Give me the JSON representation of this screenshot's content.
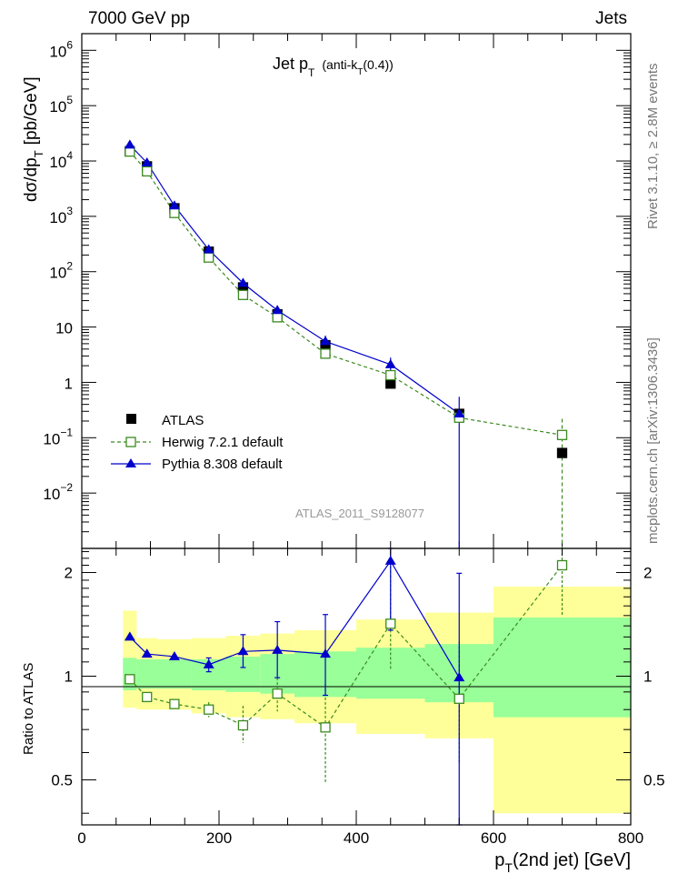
{
  "header": {
    "left": "7000 GeV pp",
    "right": "Jets"
  },
  "side_labels": {
    "rivet": "Rivet 3.1.10, ≥ 2.8M events",
    "mcplots": "mcplots.cern.ch [arXiv:1306.3436]"
  },
  "main_plot": {
    "title_main": "Jet p",
    "title_sub": "T",
    "title_extra": "(anti-k",
    "title_extra_sub": "T",
    "title_extra_end": "(0.4))",
    "ylabel_main": "dσ/dp",
    "ylabel_sub": "T",
    "ylabel_unit": "[pb/GeV]",
    "watermark": "ATLAS_2011_S9128077",
    "yticks": [
      {
        "value": 1000000,
        "base": "10",
        "exp": "6"
      },
      {
        "value": 100000,
        "base": "10",
        "exp": "5"
      },
      {
        "value": 10000,
        "base": "10",
        "exp": "4"
      },
      {
        "value": 1000,
        "base": "10",
        "exp": "3"
      },
      {
        "value": 100,
        "base": "10",
        "exp": "2"
      },
      {
        "value": 10,
        "base": "10",
        "exp": ""
      },
      {
        "value": 1,
        "base": "1",
        "exp": ""
      },
      {
        "value": 0.1,
        "base": "10",
        "exp": "−1"
      },
      {
        "value": 0.01,
        "base": "10",
        "exp": "−2"
      }
    ]
  },
  "legend": [
    {
      "key": "atlas",
      "label": "ATLAS"
    },
    {
      "key": "herwig",
      "label": "Herwig 7.2.1 default"
    },
    {
      "key": "pythia",
      "label": "Pythia 8.308 default"
    }
  ],
  "ratio_plot": {
    "ylabel": "Ratio to ATLAS",
    "yticks": [
      {
        "value": 2,
        "label": "2"
      },
      {
        "value": 1,
        "label": "1"
      },
      {
        "value": 0.5,
        "label": "0.5"
      }
    ]
  },
  "x_axis": {
    "label_main": "p",
    "label_sub": "T",
    "label_end": "(2nd jet) [GeV]",
    "ticks": [
      {
        "value": 0,
        "label": "0"
      },
      {
        "value": 200,
        "label": "200"
      },
      {
        "value": 400,
        "label": "400"
      },
      {
        "value": 600,
        "label": "600"
      },
      {
        "value": 800,
        "label": "800"
      }
    ]
  },
  "colors": {
    "atlas": "#000000",
    "herwig": "#3a8a1e",
    "pythia": "#0000cc",
    "band_inner": "#99ff99",
    "band_outer": "#ffff99"
  },
  "chart_data": [
    {
      "type": "scatter",
      "panel": "main",
      "title": "Jet pT (anti-kT(0.4))",
      "xlabel": "pT(2nd jet) [GeV]",
      "ylabel": "dσ/dpT [pb/GeV]",
      "xlim": [
        0,
        800
      ],
      "ylim": [
        0.001,
        2000000
      ],
      "yscale": "log",
      "bins": [
        [
          60,
          80
        ],
        [
          80,
          110
        ],
        [
          110,
          160
        ],
        [
          160,
          210
        ],
        [
          210,
          260
        ],
        [
          260,
          310
        ],
        [
          310,
          400
        ],
        [
          400,
          500
        ],
        [
          500,
          600
        ],
        [
          600,
          800
        ]
      ],
      "series": [
        {
          "name": "ATLAS",
          "style": "points",
          "x": [
            70,
            95,
            135,
            185,
            235,
            285,
            355,
            450,
            550,
            700
          ],
          "y": [
            15000,
            8000,
            1400,
            230,
            52,
            17,
            4.7,
            0.95,
            0.27,
            0.053
          ]
        },
        {
          "name": "Herwig 7.2.1 default",
          "style": "dashed",
          "x": [
            70,
            95,
            135,
            185,
            235,
            285,
            355,
            450,
            550,
            700
          ],
          "y": [
            14800,
            6500,
            1150,
            180,
            38,
            15,
            3.3,
            1.35,
            0.23,
            0.112
          ]
        },
        {
          "name": "Pythia 8.308 default",
          "style": "line",
          "x": [
            70,
            95,
            135,
            185,
            235,
            285,
            355,
            450,
            550
          ],
          "y": [
            19500,
            9300,
            1550,
            250,
            62,
            20,
            5.5,
            2.1,
            0.27
          ]
        }
      ]
    },
    {
      "type": "line",
      "panel": "ratio",
      "ylabel": "Ratio to ATLAS",
      "xlim": [
        0,
        800
      ],
      "ylim": [
        0.37,
        2.35
      ],
      "yscale": "log",
      "band_inner": [
        {
          "x": [
            60,
            80
          ],
          "y": [
            0.91,
            1.13
          ]
        },
        {
          "x": [
            80,
            110
          ],
          "y": [
            0.92,
            1.12
          ]
        },
        {
          "x": [
            110,
            160
          ],
          "y": [
            0.92,
            1.12
          ]
        },
        {
          "x": [
            160,
            210
          ],
          "y": [
            0.91,
            1.12
          ]
        },
        {
          "x": [
            210,
            260
          ],
          "y": [
            0.9,
            1.14
          ]
        },
        {
          "x": [
            260,
            310
          ],
          "y": [
            0.89,
            1.16
          ]
        },
        {
          "x": [
            310,
            400
          ],
          "y": [
            0.87,
            1.18
          ]
        },
        {
          "x": [
            400,
            500
          ],
          "y": [
            0.86,
            1.21
          ]
        },
        {
          "x": [
            500,
            600
          ],
          "y": [
            0.84,
            1.24
          ]
        },
        {
          "x": [
            600,
            800
          ],
          "y": [
            0.76,
            1.48
          ]
        }
      ],
      "band_outer": [
        {
          "x": [
            60,
            80
          ],
          "y": [
            0.81,
            1.55
          ]
        },
        {
          "x": [
            80,
            110
          ],
          "y": [
            0.8,
            1.29
          ]
        },
        {
          "x": [
            110,
            160
          ],
          "y": [
            0.8,
            1.28
          ]
        },
        {
          "x": [
            160,
            210
          ],
          "y": [
            0.78,
            1.29
          ]
        },
        {
          "x": [
            210,
            260
          ],
          "y": [
            0.76,
            1.31
          ]
        },
        {
          "x": [
            260,
            310
          ],
          "y": [
            0.75,
            1.33
          ]
        },
        {
          "x": [
            310,
            400
          ],
          "y": [
            0.73,
            1.36
          ]
        },
        {
          "x": [
            400,
            500
          ],
          "y": [
            0.68,
            1.46
          ]
        },
        {
          "x": [
            500,
            600
          ],
          "y": [
            0.66,
            1.53
          ]
        },
        {
          "x": [
            600,
            800
          ],
          "y": [
            0.4,
            1.82
          ]
        }
      ],
      "series": [
        {
          "name": "Herwig 7.2.1 default",
          "style": "dashed",
          "x": [
            70,
            95,
            135,
            185,
            235,
            285,
            355,
            450,
            550,
            700
          ],
          "y": [
            0.98,
            0.87,
            0.83,
            0.8,
            0.72,
            0.89,
            0.71,
            1.42,
            0.86,
            2.1
          ],
          "err_low": [
            0,
            0,
            0,
            0.04,
            0.08,
            0.1,
            0.22,
            0.38,
            0.3,
            0.6
          ],
          "err_high": [
            0,
            0,
            0,
            0.04,
            0.1,
            0.1,
            0.24,
            0.8,
            0.4,
            1.2
          ]
        },
        {
          "name": "Pythia 8.308 default",
          "style": "line",
          "x": [
            70,
            95,
            135,
            185,
            235,
            285,
            355,
            450,
            550
          ],
          "y": [
            1.3,
            1.16,
            1.14,
            1.08,
            1.18,
            1.19,
            1.16,
            2.16,
            0.99
          ],
          "err_low": [
            0,
            0,
            0,
            0.05,
            0.12,
            0.2,
            0.28,
            0.8,
            0.7
          ],
          "err_high": [
            0,
            0,
            0,
            0.05,
            0.14,
            0.25,
            0.35,
            0.8,
            1.0
          ]
        }
      ]
    }
  ]
}
